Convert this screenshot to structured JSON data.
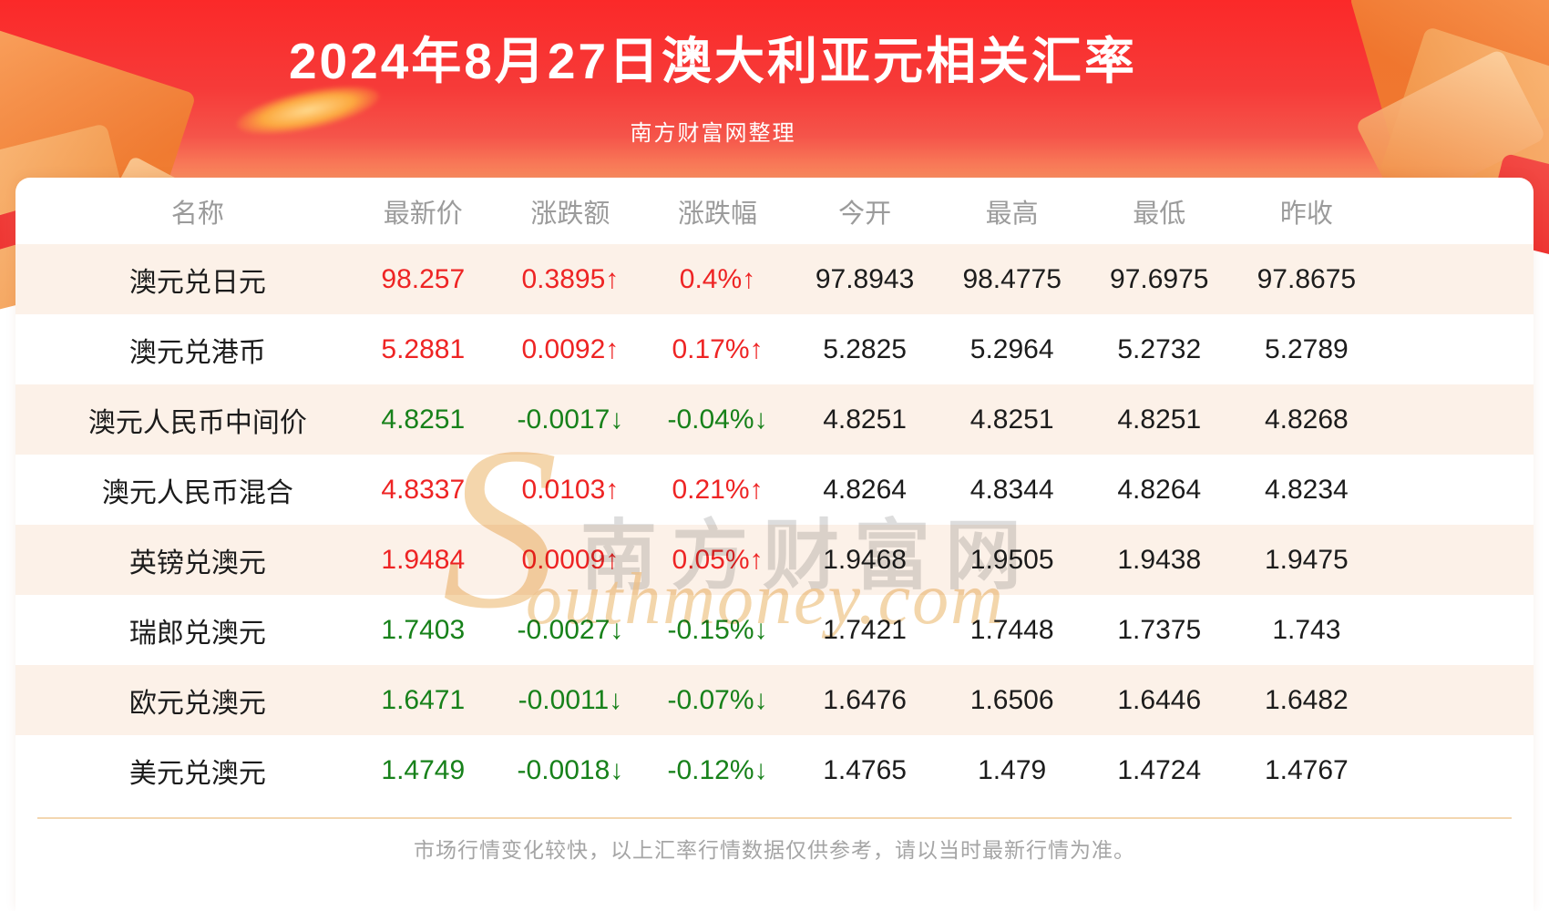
{
  "banner": {
    "title": "2024年8月27日澳大利亚元相关汇率",
    "subtitle": "南方财富网整理"
  },
  "watermark": {
    "initial": "S",
    "rest": "outhmoney.com",
    "cn": "南方财富网"
  },
  "table": {
    "columns": [
      "名称",
      "最新价",
      "涨跌额",
      "涨跌幅",
      "今开",
      "最高",
      "最低",
      "昨收"
    ],
    "rows": [
      {
        "name": "澳元兑日元",
        "latest": "98.257",
        "change": "0.3895↑",
        "pct": "0.4%↑",
        "open": "97.8943",
        "high": "98.4775",
        "low": "97.6975",
        "prev": "97.8675",
        "trend": "up"
      },
      {
        "name": "澳元兑港币",
        "latest": "5.2881",
        "change": "0.0092↑",
        "pct": "0.17%↑",
        "open": "5.2825",
        "high": "5.2964",
        "low": "5.2732",
        "prev": "5.2789",
        "trend": "up"
      },
      {
        "name": "澳元人民币中间价",
        "latest": "4.8251",
        "change": "-0.0017↓",
        "pct": "-0.04%↓",
        "open": "4.8251",
        "high": "4.8251",
        "low": "4.8251",
        "prev": "4.8268",
        "trend": "down"
      },
      {
        "name": "澳元人民币混合",
        "latest": "4.8337",
        "change": "0.0103↑",
        "pct": "0.21%↑",
        "open": "4.8264",
        "high": "4.8344",
        "low": "4.8264",
        "prev": "4.8234",
        "trend": "up"
      },
      {
        "name": "英镑兑澳元",
        "latest": "1.9484",
        "change": "0.0009↑",
        "pct": "0.05%↑",
        "open": "1.9468",
        "high": "1.9505",
        "low": "1.9438",
        "prev": "1.9475",
        "trend": "up"
      },
      {
        "name": "瑞郎兑澳元",
        "latest": "1.7403",
        "change": "-0.0027↓",
        "pct": "-0.15%↓",
        "open": "1.7421",
        "high": "1.7448",
        "low": "1.7375",
        "prev": "1.743",
        "trend": "down"
      },
      {
        "name": "欧元兑澳元",
        "latest": "1.6471",
        "change": "-0.0011↓",
        "pct": "-0.07%↓",
        "open": "1.6476",
        "high": "1.6506",
        "low": "1.6446",
        "prev": "1.6482",
        "trend": "down"
      },
      {
        "name": "美元兑澳元",
        "latest": "1.4749",
        "change": "-0.0018↓",
        "pct": "-0.12%↓",
        "open": "1.4765",
        "high": "1.479",
        "low": "1.4724",
        "prev": "1.4767",
        "trend": "down"
      }
    ]
  },
  "footer": {
    "note": "市场行情变化较快，以上汇率行情数据仅供参考，请以当时最新行情为准。"
  },
  "colors": {
    "banner_red": "#fb2929",
    "up_red": "#ee2424",
    "down_green": "#17811a",
    "row_tint": "#fcf1e8",
    "divider_tan": "#f3d7b0",
    "header_gray": "#9b9b9b"
  }
}
